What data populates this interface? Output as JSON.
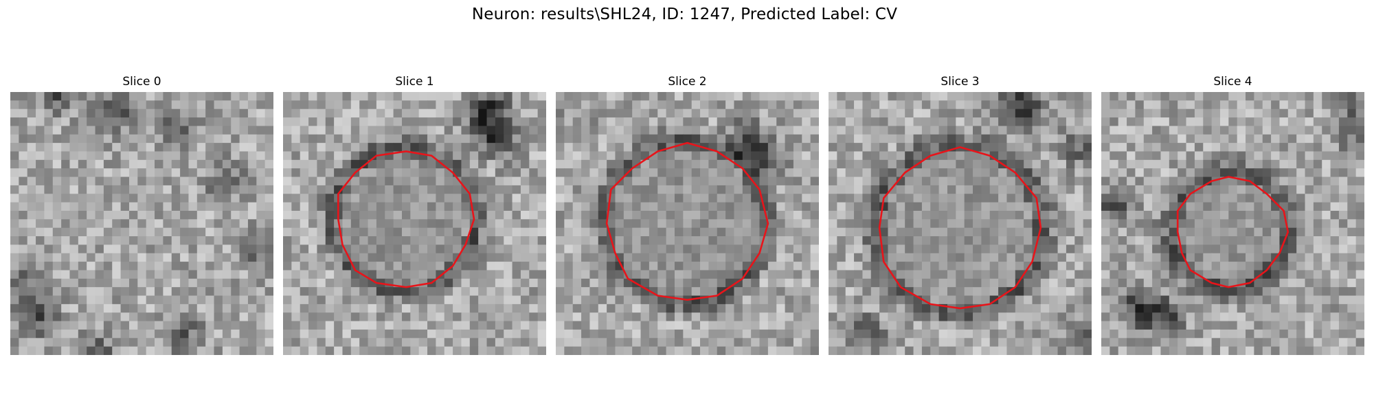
{
  "figure": {
    "title": "Neuron: results\\SHL24, ID: 1247, Predicted Label: CV"
  },
  "slices": [
    {
      "title": "Slice 0",
      "has_contour": false
    },
    {
      "title": "Slice 1",
      "has_contour": true
    },
    {
      "title": "Slice 2",
      "has_contour": true
    },
    {
      "title": "Slice 3",
      "has_contour": true
    },
    {
      "title": "Slice 4",
      "has_contour": true
    }
  ],
  "colors": {
    "contour": "#e8141a",
    "background": "#ffffff"
  }
}
